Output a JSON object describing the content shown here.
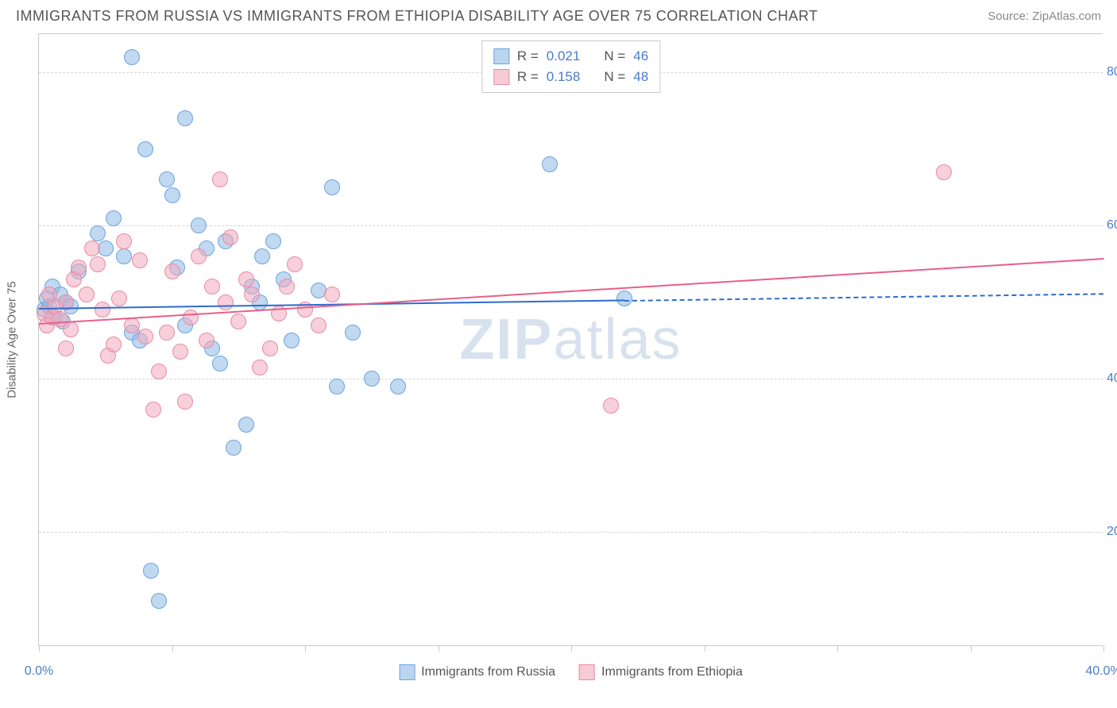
{
  "header": {
    "title": "IMMIGRANTS FROM RUSSIA VS IMMIGRANTS FROM ETHIOPIA DISABILITY AGE OVER 75 CORRELATION CHART",
    "source_prefix": "Source: ",
    "source_name": "ZipAtlas.com"
  },
  "chart": {
    "type": "scatter",
    "y_axis_title": "Disability Age Over 75",
    "watermark_a": "ZIP",
    "watermark_b": "atlas",
    "background_color": "#ffffff",
    "grid_color": "#d6d6d6",
    "border_color": "#c8c8c8",
    "x": {
      "min": 0,
      "max": 40,
      "ticks": [
        0,
        5,
        10,
        15,
        20,
        25,
        30,
        35,
        40
      ],
      "label_min": "0.0%",
      "label_max": "40.0%"
    },
    "y": {
      "min": 5,
      "max": 85,
      "gridlines": [
        20,
        40,
        60,
        80
      ],
      "labels": [
        "20.0%",
        "40.0%",
        "60.0%",
        "80.0%"
      ]
    },
    "legend_top": [
      {
        "swatch_fill": "#bcd5ef",
        "swatch_stroke": "#6da3dc",
        "r_label": "R =",
        "r_val": "0.021",
        "n_label": "N =",
        "n_val": "46"
      },
      {
        "swatch_fill": "#f6cbd6",
        "swatch_stroke": "#e88aa4",
        "r_label": "R =",
        "r_val": "0.158",
        "n_label": "N =",
        "n_val": "48"
      }
    ],
    "legend_bottom": [
      {
        "swatch_fill": "#bcd5ef",
        "swatch_stroke": "#6da3dc",
        "label": "Immigrants from Russia"
      },
      {
        "swatch_fill": "#f6cbd6",
        "swatch_stroke": "#e88aa4",
        "label": "Immigrants from Ethiopia"
      }
    ],
    "series": [
      {
        "name": "russia",
        "marker_fill": "rgba(141,186,229,0.55)",
        "marker_stroke": "#6da3dc",
        "marker_radius": 10,
        "trend": {
          "color": "#2e6bd0",
          "width": 2,
          "solid_x1": 0,
          "solid_y1": 49.2,
          "solid_x2": 22,
          "solid_y2": 50.3,
          "dash_x2": 40,
          "dash_y2": 51.2
        },
        "points": [
          [
            0.2,
            49
          ],
          [
            0.3,
            50.5
          ],
          [
            0.4,
            49.5
          ],
          [
            0.5,
            52
          ],
          [
            0.6,
            48
          ],
          [
            0.8,
            51
          ],
          [
            0.9,
            47.5
          ],
          [
            1.0,
            50
          ],
          [
            1.2,
            49.5
          ],
          [
            1.5,
            54
          ],
          [
            2.2,
            59
          ],
          [
            2.5,
            57
          ],
          [
            2.8,
            61
          ],
          [
            3.2,
            56
          ],
          [
            3.5,
            46
          ],
          [
            3.8,
            45
          ],
          [
            3.5,
            82
          ],
          [
            4.0,
            70
          ],
          [
            4.2,
            15
          ],
          [
            4.5,
            11
          ],
          [
            4.8,
            66
          ],
          [
            5.0,
            64
          ],
          [
            5.2,
            54.5
          ],
          [
            5.5,
            47
          ],
          [
            5.5,
            74
          ],
          [
            6.0,
            60
          ],
          [
            6.3,
            57
          ],
          [
            6.5,
            44
          ],
          [
            6.8,
            42
          ],
          [
            7.0,
            58
          ],
          [
            7.3,
            31
          ],
          [
            7.8,
            34
          ],
          [
            8.0,
            52
          ],
          [
            8.3,
            50
          ],
          [
            8.4,
            56
          ],
          [
            8.8,
            58
          ],
          [
            9.2,
            53
          ],
          [
            9.5,
            45
          ],
          [
            10.5,
            51.5
          ],
          [
            11.0,
            65
          ],
          [
            11.2,
            39
          ],
          [
            11.8,
            46
          ],
          [
            12.5,
            40
          ],
          [
            13.5,
            39
          ],
          [
            19.2,
            68
          ],
          [
            22.0,
            50.5
          ]
        ]
      },
      {
        "name": "ethiopia",
        "marker_fill": "rgba(240,170,190,0.55)",
        "marker_stroke": "#e88aa4",
        "marker_radius": 10,
        "trend": {
          "color": "#e85f88",
          "width": 2,
          "solid_x1": 0,
          "solid_y1": 47.3,
          "solid_x2": 40,
          "solid_y2": 55.8
        },
        "points": [
          [
            0.2,
            48.5
          ],
          [
            0.3,
            47
          ],
          [
            0.5,
            48
          ],
          [
            0.6,
            49.5
          ],
          [
            0.8,
            47.8
          ],
          [
            1.0,
            50
          ],
          [
            1.2,
            46.5
          ],
          [
            1.3,
            53
          ],
          [
            1.5,
            54.5
          ],
          [
            1.8,
            51
          ],
          [
            2.0,
            57
          ],
          [
            2.2,
            55
          ],
          [
            2.4,
            49
          ],
          [
            2.6,
            43
          ],
          [
            2.8,
            44.5
          ],
          [
            3.0,
            50.5
          ],
          [
            3.2,
            58
          ],
          [
            3.5,
            47
          ],
          [
            3.8,
            55.5
          ],
          [
            4.0,
            45.5
          ],
          [
            4.3,
            36
          ],
          [
            4.5,
            41
          ],
          [
            4.8,
            46
          ],
          [
            5.0,
            54
          ],
          [
            5.3,
            43.5
          ],
          [
            5.5,
            37
          ],
          [
            5.7,
            48
          ],
          [
            6.0,
            56
          ],
          [
            6.3,
            45
          ],
          [
            6.5,
            52
          ],
          [
            6.8,
            66
          ],
          [
            7.0,
            50
          ],
          [
            7.2,
            58.5
          ],
          [
            7.5,
            47.5
          ],
          [
            7.8,
            53
          ],
          [
            8.0,
            51
          ],
          [
            8.3,
            41.5
          ],
          [
            8.7,
            44
          ],
          [
            9.0,
            48.5
          ],
          [
            9.3,
            52
          ],
          [
            9.6,
            55
          ],
          [
            10.0,
            49
          ],
          [
            10.5,
            47
          ],
          [
            11.0,
            51
          ],
          [
            21.5,
            36.5
          ],
          [
            34.0,
            67
          ],
          [
            0.4,
            51
          ],
          [
            1.0,
            44
          ]
        ]
      }
    ]
  }
}
